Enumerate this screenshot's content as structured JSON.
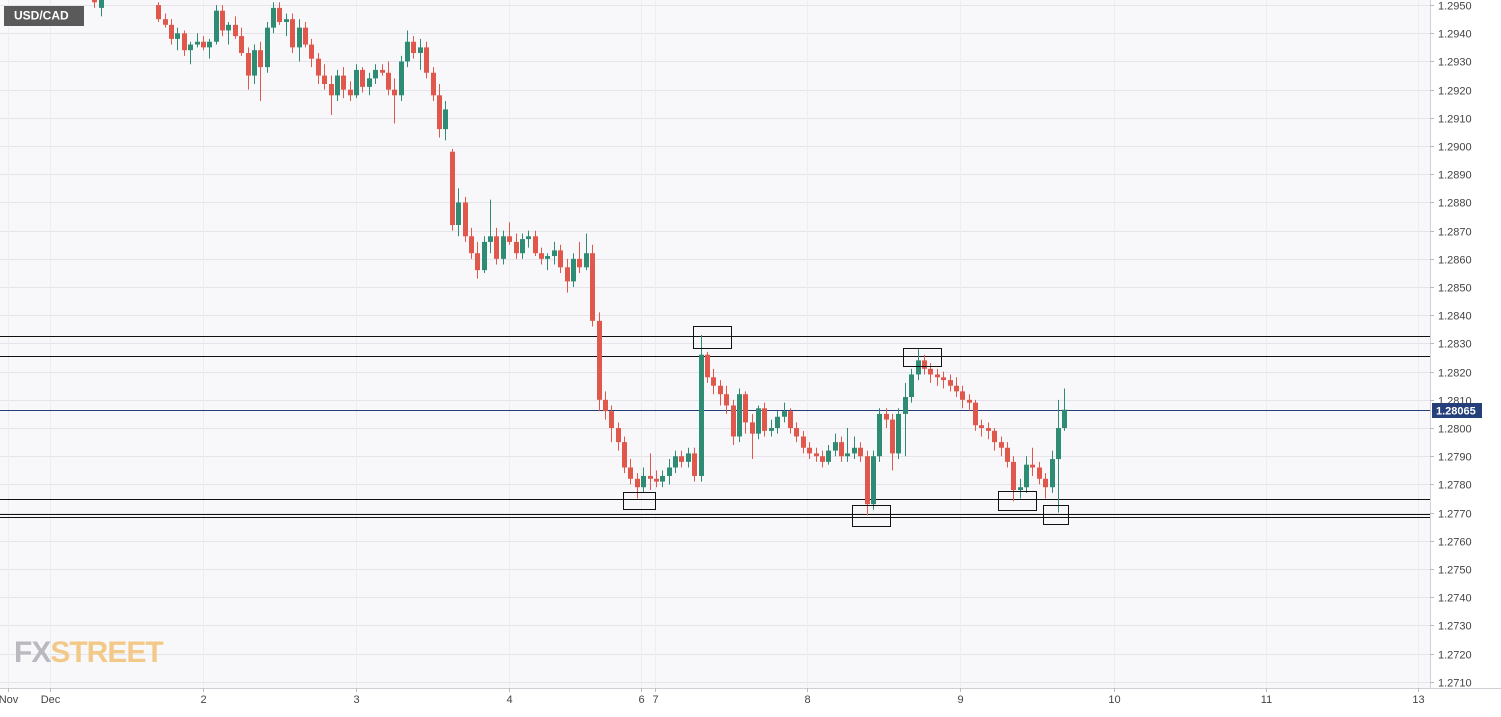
{
  "chart_data": {
    "type": "candlestick",
    "symbol": "USD/CAD",
    "last_price": 1.28065,
    "logo": {
      "left": "FX",
      "right": "STREET"
    },
    "colors": {
      "up": "#2e8b74",
      "down": "#e0584c",
      "last": "#243f7a",
      "level": "#111111"
    },
    "grid": true,
    "ylim": [
      1.27078,
      1.29518
    ],
    "yticks": [
      {
        "value": 1.271,
        "label": "1.2710"
      },
      {
        "value": 1.272,
        "label": "1.2720"
      },
      {
        "value": 1.273,
        "label": "1.2730"
      },
      {
        "value": 1.274,
        "label": "1.2740"
      },
      {
        "value": 1.275,
        "label": "1.2750"
      },
      {
        "value": 1.276,
        "label": "1.2760"
      },
      {
        "value": 1.277,
        "label": "1.2770"
      },
      {
        "value": 1.278,
        "label": "1.2780"
      },
      {
        "value": 1.279,
        "label": "1.2790"
      },
      {
        "value": 1.28,
        "label": "1.2800"
      },
      {
        "value": 1.281,
        "label": "1.2810"
      },
      {
        "value": 1.282,
        "label": "1.2820"
      },
      {
        "value": 1.283,
        "label": "1.2830"
      },
      {
        "value": 1.284,
        "label": "1.2840"
      },
      {
        "value": 1.285,
        "label": "1.2850"
      },
      {
        "value": 1.286,
        "label": "1.2860"
      },
      {
        "value": 1.287,
        "label": "1.2870"
      },
      {
        "value": 1.288,
        "label": "1.2880"
      },
      {
        "value": 1.289,
        "label": "1.2890"
      },
      {
        "value": 1.29,
        "label": "1.2900"
      },
      {
        "value": 1.291,
        "label": "1.2910"
      },
      {
        "value": 1.292,
        "label": "1.2920"
      },
      {
        "value": 1.293,
        "label": "1.2930"
      },
      {
        "value": 1.294,
        "label": "1.2940"
      },
      {
        "value": 1.295,
        "label": "1.2950"
      }
    ],
    "xlim": [
      -7.8,
      216.3
    ],
    "xticks": [
      {
        "value": -6.5,
        "label": "Nov"
      },
      {
        "value": 0,
        "label": "Dec"
      },
      {
        "value": 24,
        "label": "2"
      },
      {
        "value": 48,
        "label": "3"
      },
      {
        "value": 72,
        "label": "4"
      },
      {
        "value": 92.6,
        "label": "6"
      },
      {
        "value": 94.8,
        "label": "7"
      },
      {
        "value": 118.6,
        "label": "8"
      },
      {
        "value": 142.6,
        "label": "9"
      },
      {
        "value": 166.8,
        "label": "10"
      },
      {
        "value": 190.6,
        "label": "11"
      },
      {
        "value": 214.4,
        "label": "13"
      }
    ],
    "levels": [
      1.28327,
      1.28256,
      1.27749,
      1.27696,
      1.27685
    ],
    "x": [
      7,
      8,
      17,
      18,
      19,
      20,
      21,
      22,
      23,
      24,
      25,
      26,
      27,
      28,
      29,
      30,
      31,
      32,
      33,
      34,
      35,
      36,
      37,
      38,
      39,
      40,
      41,
      42,
      43,
      44,
      45,
      46,
      47,
      48,
      49,
      50,
      51,
      52,
      53,
      54,
      55,
      56,
      57,
      58,
      59,
      60,
      61,
      62,
      63,
      64,
      65,
      66,
      67,
      68,
      69,
      70,
      71,
      72,
      73,
      74,
      75,
      76,
      77,
      78,
      79,
      80,
      81,
      82,
      83,
      84,
      85,
      86,
      87,
      88,
      89,
      90,
      91,
      92,
      93,
      94,
      95,
      96,
      97,
      98,
      99,
      100,
      101,
      102,
      103,
      104,
      105,
      106,
      107,
      108,
      109,
      110,
      111,
      112,
      113,
      114,
      115,
      116,
      117,
      118,
      119,
      120,
      121,
      122,
      123,
      124,
      125,
      126,
      127,
      128,
      129,
      130,
      131,
      132,
      133,
      134,
      135,
      136,
      137,
      138,
      139,
      140,
      141,
      142,
      143,
      144,
      145,
      146,
      147,
      148,
      149,
      150,
      151,
      152,
      153,
      154,
      155,
      156,
      157,
      158,
      159
    ],
    "ohlc": [
      [
        1.2955,
        1.2956,
        1.2949,
        1.2951
      ],
      [
        1.2949,
        1.2953,
        1.2946,
        1.2952
      ],
      [
        1.295,
        1.2951,
        1.2944,
        1.2945
      ],
      [
        1.2945,
        1.2947,
        1.2942,
        1.2943
      ],
      [
        1.2943,
        1.2945,
        1.2936,
        1.2938
      ],
      [
        1.2938,
        1.2942,
        1.2934,
        1.294
      ],
      [
        1.294,
        1.2941,
        1.2932,
        1.2934
      ],
      [
        1.2934,
        1.2937,
        1.2929,
        1.2936
      ],
      [
        1.2936,
        1.294,
        1.2935,
        1.2937
      ],
      [
        1.2937,
        1.2939,
        1.2934,
        1.2935
      ],
      [
        1.2935,
        1.2938,
        1.2931,
        1.2937
      ],
      [
        1.2937,
        1.295,
        1.2936,
        1.2948
      ],
      [
        1.2948,
        1.295,
        1.2939,
        1.2941
      ],
      [
        1.2941,
        1.2944,
        1.2936,
        1.2943
      ],
      [
        1.2943,
        1.2946,
        1.2938,
        1.2939
      ],
      [
        1.2939,
        1.2942,
        1.2932,
        1.2933
      ],
      [
        1.2933,
        1.2935,
        1.292,
        1.2925
      ],
      [
        1.2925,
        1.2936,
        1.2922,
        1.2934
      ],
      [
        1.2934,
        1.2937,
        1.2916,
        1.2928
      ],
      [
        1.2928,
        1.2944,
        1.2926,
        1.2942
      ],
      [
        1.2942,
        1.2951,
        1.294,
        1.2949
      ],
      [
        1.2949,
        1.2951,
        1.2943,
        1.2944
      ],
      [
        1.2944,
        1.2947,
        1.2939,
        1.2945
      ],
      [
        1.2945,
        1.2947,
        1.2933,
        1.2935
      ],
      [
        1.2935,
        1.2945,
        1.293,
        1.2942
      ],
      [
        1.2942,
        1.2944,
        1.2935,
        1.2936
      ],
      [
        1.2936,
        1.2938,
        1.2928,
        1.2931
      ],
      [
        1.2931,
        1.2933,
        1.2922,
        1.2925
      ],
      [
        1.2925,
        1.2929,
        1.292,
        1.2922
      ],
      [
        1.2922,
        1.2925,
        1.2911,
        1.2918
      ],
      [
        1.2918,
        1.2927,
        1.2916,
        1.2925
      ],
      [
        1.2925,
        1.2928,
        1.2917,
        1.292
      ],
      [
        1.292,
        1.2923,
        1.2916,
        1.2918
      ],
      [
        1.2918,
        1.2929,
        1.2917,
        1.2927
      ],
      [
        1.2927,
        1.2928,
        1.2919,
        1.2921
      ],
      [
        1.2921,
        1.2926,
        1.2918,
        1.2924
      ],
      [
        1.2924,
        1.2929,
        1.2922,
        1.2927
      ],
      [
        1.2927,
        1.2929,
        1.2925,
        1.2926
      ],
      [
        1.2926,
        1.293,
        1.2918,
        1.292
      ],
      [
        1.292,
        1.2924,
        1.2908,
        1.2918
      ],
      [
        1.2918,
        1.2932,
        1.2916,
        1.293
      ],
      [
        1.293,
        1.2941,
        1.2928,
        1.2937
      ],
      [
        1.2937,
        1.2939,
        1.2931,
        1.2933
      ],
      [
        1.2933,
        1.2938,
        1.2927,
        1.2935
      ],
      [
        1.2935,
        1.2937,
        1.2924,
        1.2926
      ],
      [
        1.2926,
        1.2928,
        1.2916,
        1.2918
      ],
      [
        1.2918,
        1.2922,
        1.2903,
        1.2906
      ],
      [
        1.2906,
        1.2916,
        1.2902,
        1.2913
      ],
      [
        1.2898,
        1.2899,
        1.287,
        1.2872
      ],
      [
        1.2872,
        1.2885,
        1.2868,
        1.288
      ],
      [
        1.288,
        1.2882,
        1.2866,
        1.2868
      ],
      [
        1.2868,
        1.2871,
        1.286,
        1.2862
      ],
      [
        1.2862,
        1.2866,
        1.2853,
        1.2856
      ],
      [
        1.2856,
        1.2868,
        1.2855,
        1.2866
      ],
      [
        1.2866,
        1.2881,
        1.2862,
        1.2868
      ],
      [
        1.2868,
        1.2871,
        1.2858,
        1.286
      ],
      [
        1.286,
        1.287,
        1.2858,
        1.2868
      ],
      [
        1.2868,
        1.2873,
        1.2865,
        1.2866
      ],
      [
        1.2866,
        1.2869,
        1.286,
        1.2862
      ],
      [
        1.2862,
        1.2869,
        1.286,
        1.2867
      ],
      [
        1.2867,
        1.287,
        1.2864,
        1.2868
      ],
      [
        1.2868,
        1.287,
        1.2861,
        1.2862
      ],
      [
        1.2862,
        1.2864,
        1.2858,
        1.286
      ],
      [
        1.286,
        1.2862,
        1.2856,
        1.2861
      ],
      [
        1.2861,
        1.2866,
        1.2858,
        1.2863
      ],
      [
        1.2863,
        1.2865,
        1.2855,
        1.2857
      ],
      [
        1.2857,
        1.286,
        1.2848,
        1.2852
      ],
      [
        1.2852,
        1.2862,
        1.285,
        1.286
      ],
      [
        1.286,
        1.2866,
        1.2855,
        1.2857
      ],
      [
        1.2857,
        1.2869,
        1.2856,
        1.2862
      ],
      [
        1.2862,
        1.2865,
        1.2836,
        1.2838
      ],
      [
        1.2838,
        1.2841,
        1.2806,
        1.281
      ],
      [
        1.281,
        1.2813,
        1.2803,
        1.2806
      ],
      [
        1.2806,
        1.2808,
        1.2795,
        1.28
      ],
      [
        1.28,
        1.2802,
        1.2792,
        1.2795
      ],
      [
        1.2795,
        1.2797,
        1.2784,
        1.2786
      ],
      [
        1.2786,
        1.2789,
        1.278,
        1.2782
      ],
      [
        1.2782,
        1.2784,
        1.2775,
        1.2779
      ],
      [
        1.2779,
        1.2786,
        1.2777,
        1.2783
      ],
      [
        1.2783,
        1.2791,
        1.2778,
        1.2782
      ],
      [
        1.2782,
        1.2785,
        1.2779,
        1.2781
      ],
      [
        1.2781,
        1.2785,
        1.2779,
        1.2783
      ],
      [
        1.2783,
        1.2789,
        1.278,
        1.2786
      ],
      [
        1.2786,
        1.2792,
        1.2784,
        1.279
      ],
      [
        1.279,
        1.2792,
        1.2786,
        1.2788
      ],
      [
        1.2788,
        1.2793,
        1.2786,
        1.2791
      ],
      [
        1.2791,
        1.2793,
        1.2781,
        1.2783
      ],
      [
        1.2783,
        1.2833,
        1.2781,
        1.2826
      ],
      [
        1.2826,
        1.2827,
        1.2816,
        1.2818
      ],
      [
        1.2818,
        1.2821,
        1.2812,
        1.2815
      ],
      [
        1.2815,
        1.2817,
        1.2808,
        1.2812
      ],
      [
        1.2812,
        1.2815,
        1.2805,
        1.2808
      ],
      [
        1.2808,
        1.281,
        1.2794,
        1.2797
      ],
      [
        1.2797,
        1.2814,
        1.2795,
        1.2812
      ],
      [
        1.2812,
        1.2813,
        1.2798,
        1.2802
      ],
      [
        1.2802,
        1.2805,
        1.2789,
        1.2798
      ],
      [
        1.2798,
        1.2808,
        1.2796,
        1.2807
      ],
      [
        1.2807,
        1.2809,
        1.2797,
        1.2799
      ],
      [
        1.2799,
        1.2803,
        1.2797,
        1.28
      ],
      [
        1.28,
        1.2806,
        1.2798,
        1.2804
      ],
      [
        1.2804,
        1.2809,
        1.2802,
        1.2806
      ],
      [
        1.2806,
        1.2807,
        1.2798,
        1.28
      ],
      [
        1.28,
        1.2802,
        1.2795,
        1.2797
      ],
      [
        1.2797,
        1.2799,
        1.2791,
        1.2793
      ],
      [
        1.2793,
        1.2795,
        1.2789,
        1.2791
      ],
      [
        1.2791,
        1.2793,
        1.2788,
        1.279
      ],
      [
        1.279,
        1.2792,
        1.2786,
        1.2788
      ],
      [
        1.2788,
        1.2794,
        1.2787,
        1.2792
      ],
      [
        1.2792,
        1.2798,
        1.279,
        1.2795
      ],
      [
        1.2795,
        1.2797,
        1.2788,
        1.279
      ],
      [
        1.279,
        1.28,
        1.2788,
        1.2791
      ],
      [
        1.2791,
        1.2797,
        1.2789,
        1.2793
      ],
      [
        1.2793,
        1.2795,
        1.2788,
        1.279
      ],
      [
        1.279,
        1.2792,
        1.2769,
        1.2773
      ],
      [
        1.2773,
        1.2792,
        1.2771,
        1.279
      ],
      [
        1.279,
        1.2807,
        1.2788,
        1.2805
      ],
      [
        1.2805,
        1.2807,
        1.28,
        1.2803
      ],
      [
        1.2803,
        1.2805,
        1.2785,
        1.2791
      ],
      [
        1.2791,
        1.2807,
        1.2789,
        1.2805
      ],
      [
        1.2805,
        1.2816,
        1.279,
        1.2811
      ],
      [
        1.2811,
        1.2821,
        1.2809,
        1.2819
      ],
      [
        1.2819,
        1.2828,
        1.2817,
        1.2824
      ],
      [
        1.2824,
        1.2826,
        1.2819,
        1.2821
      ],
      [
        1.2821,
        1.2823,
        1.2816,
        1.2819
      ],
      [
        1.2819,
        1.2821,
        1.2815,
        1.2818
      ],
      [
        1.2818,
        1.282,
        1.2814,
        1.2817
      ],
      [
        1.2817,
        1.2819,
        1.2813,
        1.2815
      ],
      [
        1.2815,
        1.2818,
        1.2811,
        1.2813
      ],
      [
        1.2813,
        1.2815,
        1.2807,
        1.281
      ],
      [
        1.281,
        1.2812,
        1.2806,
        1.2809
      ],
      [
        1.2809,
        1.281,
        1.2799,
        1.2801
      ],
      [
        1.2801,
        1.2803,
        1.2797,
        1.28
      ],
      [
        1.28,
        1.2802,
        1.2796,
        1.2799
      ],
      [
        1.2799,
        1.28,
        1.2792,
        1.2795
      ],
      [
        1.2795,
        1.2797,
        1.279,
        1.2793
      ],
      [
        1.2793,
        1.2795,
        1.2786,
        1.2788
      ],
      [
        1.2788,
        1.279,
        1.2774,
        1.2778
      ],
      [
        1.2778,
        1.2782,
        1.2775,
        1.2779
      ],
      [
        1.2779,
        1.279,
        1.2777,
        1.2787
      ],
      [
        1.2787,
        1.2793,
        1.2783,
        1.2786
      ],
      [
        1.2786,
        1.2788,
        1.278,
        1.2782
      ],
      [
        1.2782,
        1.2784,
        1.2775,
        1.2779
      ],
      [
        1.2779,
        1.2792,
        1.2777,
        1.2789
      ],
      [
        1.2789,
        1.281,
        1.277,
        1.28
      ],
      [
        1.28,
        1.2814,
        1.2799,
        1.28065
      ]
    ]
  }
}
